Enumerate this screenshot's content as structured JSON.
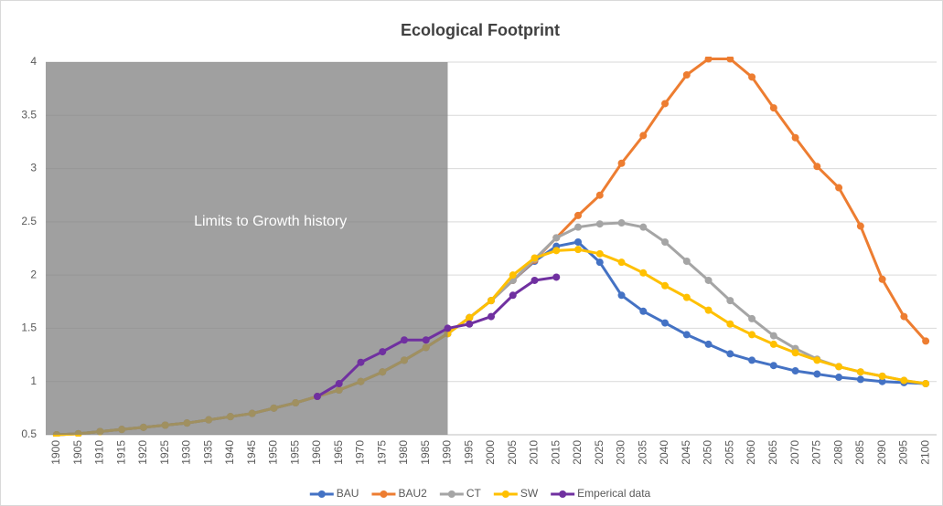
{
  "chart_data": {
    "type": "line",
    "title": "Ecological Footprint",
    "categories": [
      "1900",
      "1905",
      "1910",
      "1915",
      "1920",
      "1925",
      "1930",
      "1935",
      "1940",
      "1945",
      "1950",
      "1955",
      "1960",
      "1965",
      "1970",
      "1975",
      "1980",
      "1985",
      "1990",
      "1995",
      "2000",
      "2005",
      "2010",
      "2015",
      "2020",
      "2025",
      "2030",
      "2035",
      "2040",
      "2045",
      "2050",
      "2055",
      "2060",
      "2065",
      "2070",
      "2075",
      "2080",
      "2085",
      "2090",
      "2095",
      "2100"
    ],
    "series": [
      {
        "name": "BAU",
        "color": "#4472c4",
        "values": [
          0.5,
          0.51,
          0.53,
          0.55,
          0.57,
          0.59,
          0.61,
          0.64,
          0.67,
          0.7,
          0.75,
          0.8,
          0.86,
          0.92,
          1.0,
          1.09,
          1.2,
          1.32,
          1.45,
          1.6,
          1.76,
          1.95,
          2.13,
          2.27,
          2.31,
          2.12,
          1.81,
          1.66,
          1.55,
          1.44,
          1.35,
          1.26,
          1.2,
          1.15,
          1.1,
          1.07,
          1.04,
          1.02,
          1.0,
          0.99,
          0.98
        ]
      },
      {
        "name": "BAU2",
        "color": "#ed7d31",
        "values": [
          0.5,
          0.51,
          0.53,
          0.55,
          0.57,
          0.59,
          0.61,
          0.64,
          0.67,
          0.7,
          0.75,
          0.8,
          0.86,
          0.92,
          1.0,
          1.09,
          1.2,
          1.32,
          1.45,
          1.6,
          1.76,
          1.95,
          2.14,
          2.35,
          2.56,
          2.75,
          3.05,
          3.31,
          3.61,
          3.88,
          4.03,
          4.03,
          3.86,
          3.57,
          3.29,
          3.02,
          2.82,
          2.46,
          1.96,
          1.61,
          1.38
        ]
      },
      {
        "name": "CT",
        "color": "#a5a5a5",
        "values": [
          0.5,
          0.51,
          0.53,
          0.55,
          0.57,
          0.59,
          0.61,
          0.64,
          0.67,
          0.7,
          0.75,
          0.8,
          0.86,
          0.92,
          1.0,
          1.09,
          1.2,
          1.32,
          1.45,
          1.6,
          1.76,
          1.95,
          2.15,
          2.35,
          2.45,
          2.48,
          2.49,
          2.45,
          2.31,
          2.13,
          1.95,
          1.76,
          1.59,
          1.43,
          1.31,
          1.21,
          1.14,
          1.09,
          1.05,
          1.01,
          0.98
        ]
      },
      {
        "name": "SW",
        "color": "#ffc000",
        "values": [
          0.5,
          0.51,
          0.53,
          0.55,
          0.57,
          0.59,
          0.61,
          0.64,
          0.67,
          0.7,
          0.75,
          0.8,
          0.86,
          0.92,
          1.0,
          1.09,
          1.2,
          1.32,
          1.45,
          1.6,
          1.76,
          2.0,
          2.16,
          2.23,
          2.24,
          2.2,
          2.12,
          2.02,
          1.9,
          1.79,
          1.67,
          1.54,
          1.44,
          1.35,
          1.27,
          1.2,
          1.14,
          1.09,
          1.05,
          1.01,
          0.98
        ]
      },
      {
        "name": "Emperical data",
        "color": "#7030a0",
        "values": [
          null,
          null,
          null,
          null,
          null,
          null,
          null,
          null,
          null,
          null,
          null,
          null,
          0.86,
          0.98,
          1.18,
          1.28,
          1.39,
          1.39,
          1.5,
          1.54,
          1.61,
          1.81,
          1.95,
          1.98,
          null,
          null,
          null,
          null,
          null,
          null,
          null,
          null,
          null,
          null,
          null,
          null,
          null,
          null,
          null,
          null,
          null
        ]
      }
    ],
    "ylim": [
      0.5,
      4
    ],
    "yticks": [
      0.5,
      1,
      1.5,
      2,
      2.5,
      3,
      3.5,
      4
    ],
    "grid": true,
    "shaded_region": {
      "from": "1900",
      "to": "1990",
      "label": "Limits to Growth history"
    },
    "legend": "bottom"
  }
}
